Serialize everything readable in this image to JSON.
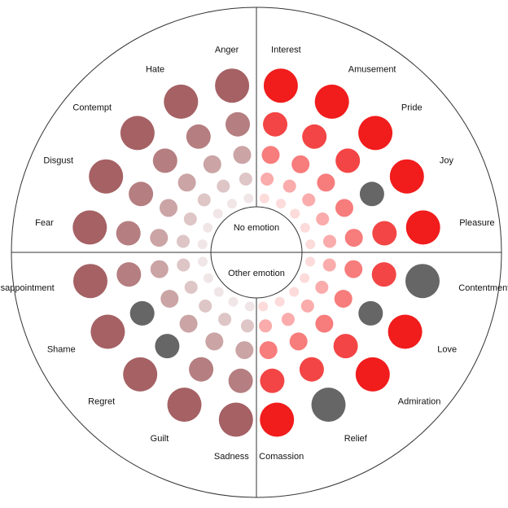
{
  "wheel": {
    "center_top_label": "No emotion",
    "center_bottom_label": "Other emotion",
    "selected_color": "#666666",
    "left_base_color": "#a0595c",
    "right_base_color": "#f01010",
    "emotions": [
      {
        "name": "Anger",
        "side": "left",
        "selected_level": null
      },
      {
        "name": "Hate",
        "side": "left",
        "selected_level": null
      },
      {
        "name": "Contempt",
        "side": "left",
        "selected_level": null
      },
      {
        "name": "Disgust",
        "side": "left",
        "selected_level": null
      },
      {
        "name": "Fear",
        "side": "left",
        "selected_level": null
      },
      {
        "name": "Disappointment",
        "side": "left",
        "selected_level": null
      },
      {
        "name": "Shame",
        "side": "left",
        "selected_level": 4
      },
      {
        "name": "Regret",
        "side": "left",
        "selected_level": 4
      },
      {
        "name": "Guilt",
        "side": "left",
        "selected_level": null
      },
      {
        "name": "Sadness",
        "side": "left",
        "selected_level": null
      },
      {
        "name": "Interest",
        "side": "right",
        "selected_level": null
      },
      {
        "name": "Amusement",
        "side": "right",
        "selected_level": null
      },
      {
        "name": "Pride",
        "side": "right",
        "selected_level": null
      },
      {
        "name": "Joy",
        "side": "right",
        "selected_level": 4
      },
      {
        "name": "Pleasure",
        "side": "right",
        "selected_level": null
      },
      {
        "name": "Contentment",
        "side": "right",
        "selected_level": 5
      },
      {
        "name": "Love",
        "side": "right",
        "selected_level": 4
      },
      {
        "name": "Admiration",
        "side": "right",
        "selected_level": null
      },
      {
        "name": "Relief",
        "side": "right",
        "selected_level": 5
      },
      {
        "name": "Comassion",
        "side": "right",
        "selected_level": null
      }
    ]
  }
}
